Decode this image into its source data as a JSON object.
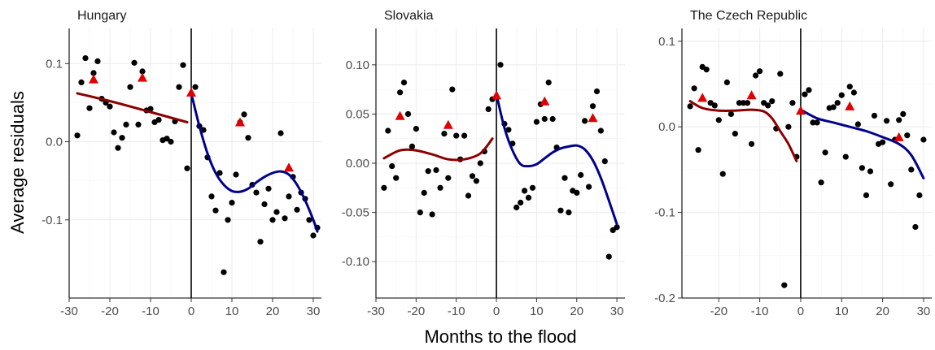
{
  "chart_data": {
    "type": "scatter",
    "xlabel": "Months to the flood",
    "ylabel": "Average residuals",
    "colors": {
      "points": "#000000",
      "triangles": "#e00000",
      "pre_fit": "#8b0000",
      "post_fit": "#00008b"
    },
    "panels": [
      {
        "title": "Hungary",
        "xlim": [
          -30,
          32
        ],
        "ylim": [
          -0.2,
          0.145
        ],
        "xticks": [
          -30,
          -20,
          -10,
          0,
          10,
          20,
          30
        ],
        "xtick_labels": [
          "-30",
          "-20",
          "-10",
          "0",
          "10",
          "20",
          "30"
        ],
        "yticks": [
          -0.1,
          0.0,
          0.1
        ],
        "ytick_labels": [
          "-0.1",
          "0.0",
          "0.1"
        ],
        "points": [
          [
            -28,
            0.008
          ],
          [
            -27,
            0.076
          ],
          [
            -26,
            0.107
          ],
          [
            -25,
            0.043
          ],
          [
            -24,
            0.088
          ],
          [
            -23,
            0.103
          ],
          [
            -22,
            0.055
          ],
          [
            -21,
            0.05
          ],
          [
            -20,
            0.045
          ],
          [
            -19,
            0.012
          ],
          [
            -18,
            -0.008
          ],
          [
            -17,
            0.005
          ],
          [
            -16,
            0.022
          ],
          [
            -15,
            0.07
          ],
          [
            -14,
            0.101
          ],
          [
            -13,
            0.022
          ],
          [
            -12,
            0.09
          ],
          [
            -11,
            0.04
          ],
          [
            -10,
            0.042
          ],
          [
            -9,
            0.025
          ],
          [
            -8,
            0.028
          ],
          [
            -7,
            0.002
          ],
          [
            -6,
            0.004
          ],
          [
            -5,
            0.0
          ],
          [
            -4,
            0.026
          ],
          [
            -3,
            0.07
          ],
          [
            -2,
            0.098
          ],
          [
            -1,
            -0.034
          ],
          [
            1,
            0.07
          ],
          [
            2,
            0.02
          ],
          [
            3,
            0.015
          ],
          [
            4,
            -0.02
          ],
          [
            5,
            -0.07
          ],
          [
            6,
            -0.088
          ],
          [
            7,
            -0.04
          ],
          [
            8,
            -0.167
          ],
          [
            9,
            -0.1
          ],
          [
            10,
            -0.078
          ],
          [
            11,
            -0.042
          ],
          [
            12,
            0.025
          ],
          [
            13,
            0.035
          ],
          [
            14,
            0.005
          ],
          [
            15,
            -0.055
          ],
          [
            16,
            -0.065
          ],
          [
            17,
            -0.128
          ],
          [
            18,
            -0.08
          ],
          [
            19,
            -0.06
          ],
          [
            20,
            -0.1
          ],
          [
            21,
            -0.09
          ],
          [
            22,
            0.011
          ],
          [
            23,
            -0.098
          ],
          [
            24,
            -0.07
          ],
          [
            25,
            -0.045
          ],
          [
            26,
            -0.087
          ],
          [
            27,
            -0.065
          ],
          [
            28,
            -0.073
          ],
          [
            29,
            -0.1
          ],
          [
            30,
            -0.12
          ],
          [
            31,
            -0.11
          ]
        ],
        "triangles": [
          [
            -24,
            0.08
          ],
          [
            -12,
            0.082
          ],
          [
            0,
            0.063
          ],
          [
            12,
            0.025
          ],
          [
            24,
            -0.033
          ]
        ],
        "pre_fit": [
          [
            -28,
            0.062
          ],
          [
            -20,
            0.052
          ],
          [
            -10,
            0.038
          ],
          [
            -1,
            0.025
          ]
        ],
        "post_fit": [
          [
            0,
            0.062
          ],
          [
            2,
            0.02
          ],
          [
            4,
            -0.015
          ],
          [
            6,
            -0.04
          ],
          [
            8,
            -0.055
          ],
          [
            10,
            -0.063
          ],
          [
            12,
            -0.064
          ],
          [
            14,
            -0.06
          ],
          [
            16,
            -0.052
          ],
          [
            18,
            -0.045
          ],
          [
            20,
            -0.04
          ],
          [
            22,
            -0.038
          ],
          [
            24,
            -0.042
          ],
          [
            26,
            -0.055
          ],
          [
            28,
            -0.075
          ],
          [
            30,
            -0.1
          ],
          [
            31,
            -0.115
          ]
        ]
      },
      {
        "title": "Slovakia",
        "xlim": [
          -30,
          32
        ],
        "ylim": [
          -0.137,
          0.137
        ],
        "xticks": [
          -30,
          -20,
          -10,
          0,
          10,
          20,
          30
        ],
        "xtick_labels": [
          "-30",
          "-20",
          "-10",
          "0",
          "10",
          "20",
          "30"
        ],
        "yticks": [
          -0.1,
          -0.05,
          0.0,
          0.05,
          0.1
        ],
        "ytick_labels": [
          "-0.10",
          "-0.05",
          "0.00",
          "0.05",
          "0.10"
        ],
        "points": [
          [
            -28,
            -0.025
          ],
          [
            -27,
            0.033
          ],
          [
            -26,
            -0.003
          ],
          [
            -25,
            -0.015
          ],
          [
            -24,
            0.072
          ],
          [
            -23,
            0.082
          ],
          [
            -22,
            0.05
          ],
          [
            -21,
            0.017
          ],
          [
            -20,
            0.035
          ],
          [
            -19,
            -0.05
          ],
          [
            -18,
            -0.03
          ],
          [
            -17,
            -0.008
          ],
          [
            -16,
            -0.052
          ],
          [
            -15,
            -0.007
          ],
          [
            -14,
            -0.025
          ],
          [
            -13,
            0.03
          ],
          [
            -12,
            -0.015
          ],
          [
            -11,
            0.075
          ],
          [
            -10,
            0.028
          ],
          [
            -9,
            0.004
          ],
          [
            -8,
            0.028
          ],
          [
            -7,
            -0.033
          ],
          [
            -6,
            -0.013
          ],
          [
            -5,
            -0.018
          ],
          [
            -4,
            0.0
          ],
          [
            -3,
            0.012
          ],
          [
            -2,
            0.055
          ],
          [
            -1,
            0.065
          ],
          [
            1,
            0.1
          ],
          [
            2,
            0.04
          ],
          [
            3,
            0.034
          ],
          [
            4,
            0.02
          ],
          [
            5,
            -0.045
          ],
          [
            6,
            -0.04
          ],
          [
            7,
            -0.028
          ],
          [
            8,
            -0.035
          ],
          [
            9,
            -0.025
          ],
          [
            10,
            0.042
          ],
          [
            11,
            0.06
          ],
          [
            12,
            0.045
          ],
          [
            13,
            0.082
          ],
          [
            14,
            0.045
          ],
          [
            15,
            0.016
          ],
          [
            16,
            -0.048
          ],
          [
            17,
            -0.015
          ],
          [
            18,
            -0.05
          ],
          [
            19,
            -0.028
          ],
          [
            20,
            -0.03
          ],
          [
            21,
            -0.012
          ],
          [
            22,
            0.043
          ],
          [
            23,
            -0.024
          ],
          [
            24,
            0.058
          ],
          [
            25,
            0.073
          ],
          [
            26,
            0.033
          ],
          [
            27,
            0.002
          ],
          [
            28,
            -0.095
          ],
          [
            29,
            -0.068
          ],
          [
            30,
            -0.065
          ]
        ],
        "triangles": [
          [
            -24,
            0.048
          ],
          [
            -12,
            0.039
          ],
          [
            0,
            0.069
          ],
          [
            12,
            0.063
          ],
          [
            24,
            0.046
          ]
        ],
        "pre_fit": [
          [
            -28,
            0.005
          ],
          [
            -24,
            0.013
          ],
          [
            -20,
            0.013
          ],
          [
            -16,
            0.009
          ],
          [
            -12,
            0.004
          ],
          [
            -8,
            0.004
          ],
          [
            -4,
            0.01
          ],
          [
            -1,
            0.025
          ]
        ],
        "post_fit": [
          [
            0,
            0.07
          ],
          [
            2,
            0.036
          ],
          [
            4,
            0.013
          ],
          [
            6,
            -0.001
          ],
          [
            8,
            -0.003
          ],
          [
            10,
            -0.001
          ],
          [
            12,
            0.005
          ],
          [
            14,
            0.011
          ],
          [
            16,
            0.015
          ],
          [
            18,
            0.017
          ],
          [
            20,
            0.018
          ],
          [
            22,
            0.014
          ],
          [
            24,
            0.003
          ],
          [
            26,
            -0.015
          ],
          [
            28,
            -0.038
          ],
          [
            30,
            -0.062
          ]
        ]
      },
      {
        "title": "The Czech Republic",
        "xlim": [
          -29,
          32
        ],
        "ylim": [
          -0.2,
          0.115
        ],
        "xticks": [
          -20,
          -10,
          0,
          10,
          20,
          30
        ],
        "xtick_labels": [
          "-20",
          "-10",
          "0",
          "10",
          "20",
          "30"
        ],
        "yticks": [
          -0.2,
          -0.1,
          0.0,
          0.1
        ],
        "ytick_labels": [
          "-0.2",
          "-0.1",
          "0.0",
          "0.1"
        ],
        "points": [
          [
            -27,
            0.024
          ],
          [
            -26,
            0.045
          ],
          [
            -25,
            -0.027
          ],
          [
            -24,
            0.07
          ],
          [
            -23,
            0.067
          ],
          [
            -22,
            0.028
          ],
          [
            -21,
            0.025
          ],
          [
            -20,
            0.008
          ],
          [
            -19,
            -0.055
          ],
          [
            -18,
            0.052
          ],
          [
            -17,
            0.015
          ],
          [
            -16,
            -0.008
          ],
          [
            -15,
            0.028
          ],
          [
            -14,
            0.028
          ],
          [
            -13,
            0.028
          ],
          [
            -12,
            -0.02
          ],
          [
            -11,
            0.06
          ],
          [
            -10,
            0.065
          ],
          [
            -9,
            0.028
          ],
          [
            -8,
            0.025
          ],
          [
            -7,
            0.03
          ],
          [
            -6,
            -0.002
          ],
          [
            -5,
            0.062
          ],
          [
            -4,
            -0.185
          ],
          [
            -3,
            0.0
          ],
          [
            -2,
            0.028
          ],
          [
            -1,
            -0.035
          ],
          [
            1,
            0.038
          ],
          [
            2,
            0.043
          ],
          [
            3,
            0.005
          ],
          [
            4,
            0.005
          ],
          [
            5,
            -0.065
          ],
          [
            6,
            -0.03
          ],
          [
            7,
            0.022
          ],
          [
            8,
            0.023
          ],
          [
            9,
            0.028
          ],
          [
            10,
            0.037
          ],
          [
            11,
            -0.035
          ],
          [
            12,
            0.047
          ],
          [
            13,
            0.04
          ],
          [
            14,
            0.003
          ],
          [
            15,
            -0.048
          ],
          [
            16,
            -0.08
          ],
          [
            17,
            -0.052
          ],
          [
            18,
            0.013
          ],
          [
            19,
            -0.02
          ],
          [
            20,
            -0.018
          ],
          [
            21,
            0.007
          ],
          [
            22,
            -0.067
          ],
          [
            23,
            -0.015
          ],
          [
            24,
            0.008
          ],
          [
            25,
            0.015
          ],
          [
            26,
            -0.01
          ],
          [
            27,
            -0.05
          ],
          [
            28,
            -0.117
          ],
          [
            29,
            -0.08
          ],
          [
            30,
            -0.015
          ]
        ],
        "triangles": [
          [
            -24,
            0.034
          ],
          [
            -12,
            0.037
          ],
          [
            0,
            0.019
          ],
          [
            12,
            0.024
          ],
          [
            24,
            -0.012
          ]
        ],
        "pre_fit": [
          [
            -27,
            0.03
          ],
          [
            -24,
            0.022
          ],
          [
            -20,
            0.019
          ],
          [
            -16,
            0.019
          ],
          [
            -12,
            0.02
          ],
          [
            -9,
            0.018
          ],
          [
            -7,
            0.01
          ],
          [
            -5,
            -0.005
          ],
          [
            -3,
            -0.02
          ],
          [
            -1,
            -0.04
          ]
        ],
        "post_fit": [
          [
            0,
            0.02
          ],
          [
            4,
            0.01
          ],
          [
            8,
            0.005
          ],
          [
            12,
            0.0
          ],
          [
            16,
            -0.005
          ],
          [
            20,
            -0.012
          ],
          [
            24,
            -0.02
          ],
          [
            27,
            -0.033
          ],
          [
            30,
            -0.06
          ]
        ]
      }
    ]
  }
}
